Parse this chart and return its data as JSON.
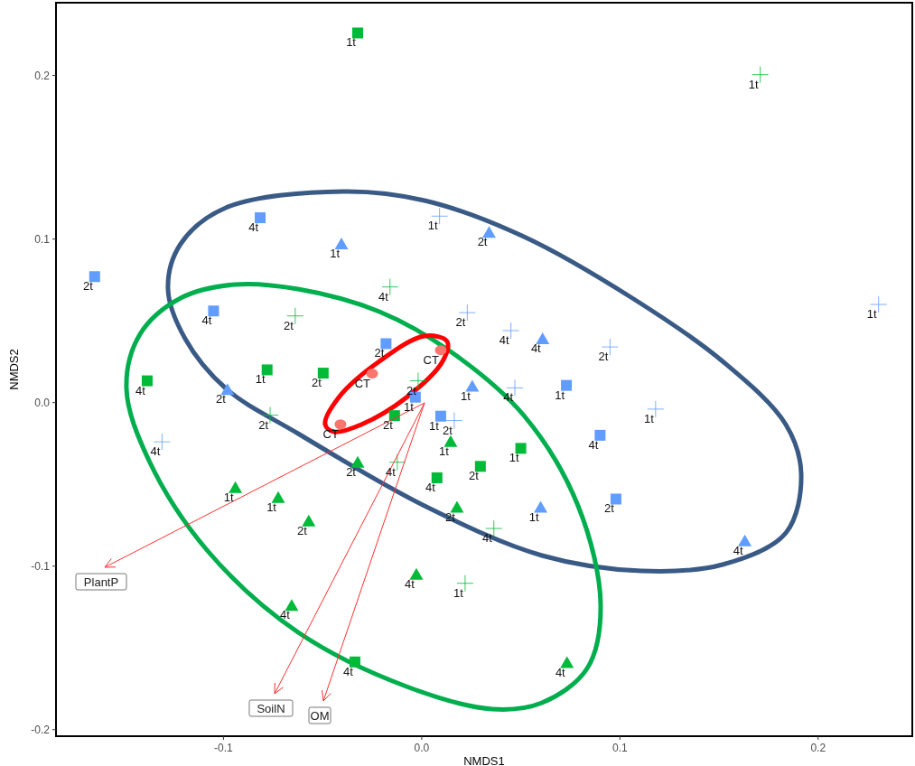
{
  "chart_data": {
    "type": "scatter",
    "xlabel": "NMDS1",
    "ylabel": "NMDS2",
    "xlim": [
      -0.1845,
      0.2475
    ],
    "ylim": [
      -0.204,
      0.2445
    ],
    "xticks": [
      -0.1,
      {
        "value": 0,
        "label": "0.0"
      },
      0.1,
      0.2
    ],
    "yticks": [
      -0.2,
      -0.1,
      {
        "value": 0,
        "label": "0.0"
      },
      0.1,
      0.2
    ],
    "series": [
      {
        "marker": "square",
        "color": "#619cff",
        "x": [
          -0.165,
          -0.0815,
          -0.105,
          -0.018,
          -0.0032,
          0.0096,
          0.073,
          0.09,
          0.098
        ],
        "values": [
          0.077,
          0.113,
          0.056,
          0.036,
          0.0033,
          -0.0083,
          0.0105,
          -0.02,
          -0.059
        ]
      },
      {
        "marker": "triangle",
        "color": "#619cff",
        "x": [
          -0.0405,
          0.034,
          -0.098,
          0.0255,
          0.061,
          0.06,
          0.163
        ],
        "values": [
          0.097,
          0.104,
          0.008,
          0.01,
          0.039,
          -0.064,
          -0.0845
        ]
      },
      {
        "marker": "cross",
        "color": "#619cff",
        "x": [
          0.009,
          0.023,
          0.045,
          0.047,
          0.095,
          0.118,
          0.2305,
          -0.131,
          0.0164
        ],
        "values": [
          0.114,
          0.055,
          0.044,
          0.009,
          0.034,
          -0.004,
          0.06,
          -0.024,
          -0.011
        ]
      },
      {
        "marker": "square",
        "color": "#00ba38",
        "x": [
          -0.0323,
          -0.1385,
          -0.078,
          -0.0497,
          -0.0137,
          0.05,
          0.0296,
          0.0077,
          -0.0337
        ],
        "values": [
          0.226,
          0.0133,
          0.02,
          0.018,
          -0.008,
          -0.028,
          -0.039,
          -0.046,
          -0.1586
        ]
      },
      {
        "marker": "triangle",
        "color": "#00ba38",
        "x": [
          -0.094,
          -0.0724,
          -0.057,
          -0.0323,
          0.0146,
          0.0178,
          -0.0027,
          -0.0656,
          0.0733
        ],
        "values": [
          -0.052,
          -0.058,
          -0.0724,
          -0.0365,
          -0.0238,
          -0.064,
          -0.105,
          -0.124,
          -0.159
        ]
      },
      {
        "marker": "cross",
        "color": "#00ba38",
        "x": [
          0.1708,
          -0.016,
          -0.0638,
          -0.0765,
          -0.0018,
          -0.0123,
          0.0364,
          0.0219
        ],
        "values": [
          0.2005,
          0.0707,
          0.053,
          -0.0077,
          0.0133,
          -0.0365,
          -0.077,
          -0.1105
        ]
      },
      {
        "marker": "circle",
        "color": "#f8766d",
        "x": [
          -0.025,
          0.0096,
          -0.041
        ],
        "values": [
          0.0177,
          0.032,
          -0.0133
        ]
      }
    ],
    "annotations": [
      {
        "text": "2t",
        "x": -0.165,
        "y": 0.077
      },
      {
        "text": "4t",
        "x": -0.0815,
        "y": 0.113
      },
      {
        "text": "4t",
        "x": -0.105,
        "y": 0.056
      },
      {
        "text": "2t",
        "x": -0.018,
        "y": 0.036
      },
      {
        "text": "1t",
        "x": -0.0032,
        "y": 0.0033
      },
      {
        "text": "1t",
        "x": 0.0096,
        "y": -0.0083
      },
      {
        "text": "1t",
        "x": 0.073,
        "y": 0.0105
      },
      {
        "text": "4t",
        "x": 0.09,
        "y": -0.02
      },
      {
        "text": "2t",
        "x": 0.098,
        "y": -0.059
      },
      {
        "text": "1t",
        "x": -0.0405,
        "y": 0.097
      },
      {
        "text": "2t",
        "x": 0.034,
        "y": 0.104
      },
      {
        "text": "2t",
        "x": -0.098,
        "y": 0.008
      },
      {
        "text": "1t",
        "x": 0.0255,
        "y": 0.01
      },
      {
        "text": "4t",
        "x": 0.061,
        "y": 0.039
      },
      {
        "text": "1t",
        "x": 0.06,
        "y": -0.064
      },
      {
        "text": "4t",
        "x": 0.163,
        "y": -0.0845
      },
      {
        "text": "1t",
        "x": 0.009,
        "y": 0.114
      },
      {
        "text": "2t",
        "x": 0.023,
        "y": 0.055
      },
      {
        "text": "4t",
        "x": 0.045,
        "y": 0.044
      },
      {
        "text": "4t",
        "x": 0.047,
        "y": 0.009
      },
      {
        "text": "2t",
        "x": 0.095,
        "y": 0.034
      },
      {
        "text": "1t",
        "x": 0.118,
        "y": -0.004
      },
      {
        "text": "1t",
        "x": 0.2305,
        "y": 0.06
      },
      {
        "text": "4t",
        "x": -0.131,
        "y": -0.024
      },
      {
        "text": "2t",
        "x": 0.0164,
        "y": -0.011
      },
      {
        "text": "1t",
        "x": -0.0323,
        "y": 0.226
      },
      {
        "text": "4t",
        "x": -0.1385,
        "y": 0.0133
      },
      {
        "text": "1t",
        "x": -0.078,
        "y": 0.02
      },
      {
        "text": "2t",
        "x": -0.0497,
        "y": 0.018
      },
      {
        "text": "2t",
        "x": -0.0137,
        "y": -0.008
      },
      {
        "text": "1t",
        "x": 0.05,
        "y": -0.028
      },
      {
        "text": "2t",
        "x": 0.0296,
        "y": -0.039
      },
      {
        "text": "4t",
        "x": 0.0077,
        "y": -0.046
      },
      {
        "text": "4t",
        "x": -0.0337,
        "y": -0.1586
      },
      {
        "text": "1t",
        "x": -0.094,
        "y": -0.052
      },
      {
        "text": "1t",
        "x": -0.0724,
        "y": -0.058
      },
      {
        "text": "2t",
        "x": -0.057,
        "y": -0.0724
      },
      {
        "text": "2t",
        "x": -0.0323,
        "y": -0.0365
      },
      {
        "text": "1t",
        "x": 0.0146,
        "y": -0.0238
      },
      {
        "text": "2t",
        "x": 0.0178,
        "y": -0.064
      },
      {
        "text": "4t",
        "x": -0.0027,
        "y": -0.105
      },
      {
        "text": "4t",
        "x": -0.0656,
        "y": -0.124
      },
      {
        "text": "4t",
        "x": 0.0733,
        "y": -0.159
      },
      {
        "text": "1t",
        "x": 0.1708,
        "y": 0.2005
      },
      {
        "text": "4t",
        "x": -0.016,
        "y": 0.0707
      },
      {
        "text": "2t",
        "x": -0.0638,
        "y": 0.053
      },
      {
        "text": "2t",
        "x": -0.0765,
        "y": -0.0077
      },
      {
        "text": "2t",
        "x": -0.0018,
        "y": 0.0133
      },
      {
        "text": "4t",
        "x": -0.0123,
        "y": -0.0365
      },
      {
        "text": "4t",
        "x": 0.0364,
        "y": -0.077
      },
      {
        "text": "1t",
        "x": 0.0219,
        "y": -0.1105
      },
      {
        "text": "CT",
        "x": -0.025,
        "y": 0.0177
      },
      {
        "text": "CT",
        "x": 0.0096,
        "y": 0.032
      },
      {
        "text": "CT",
        "x": -0.041,
        "y": -0.0133
      },
      "PlantP",
      "SoilN",
      "OM"
    ]
  }
}
